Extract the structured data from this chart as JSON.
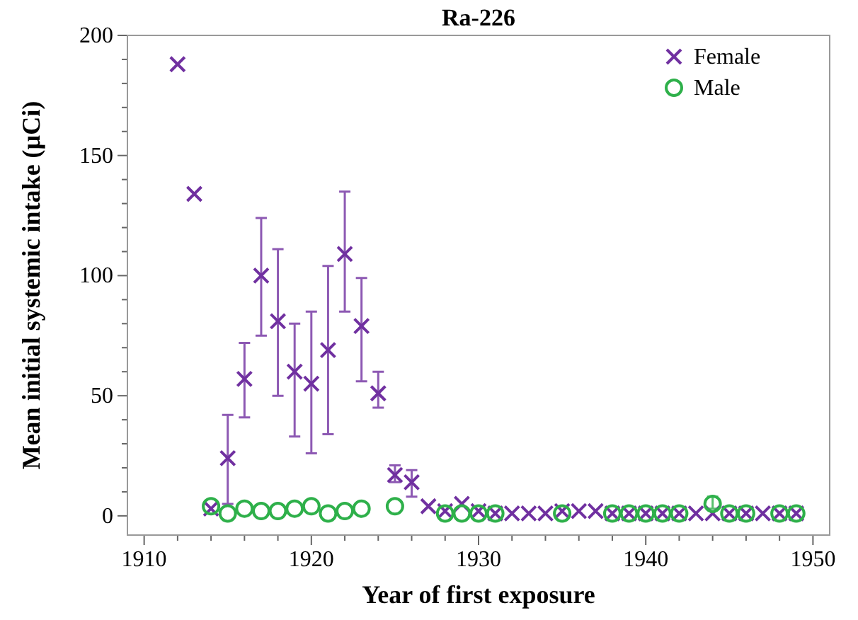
{
  "chart_data": {
    "type": "scatter",
    "title": "Ra-226",
    "xlabel": "Year of first exposure",
    "ylabel": "Mean initial systemic intake (µCi)",
    "xlim": [
      1909,
      1951
    ],
    "ylim": [
      -8,
      200
    ],
    "xticks": [
      1910,
      {
        "value": 1912,
        "label": null
      },
      {
        "value": 1914,
        "label": null
      },
      {
        "value": 1916,
        "label": null
      },
      {
        "value": 1918,
        "label": null
      },
      1920,
      {
        "value": 1922,
        "label": null
      },
      {
        "value": 1924,
        "label": null
      },
      {
        "value": 1926,
        "label": null
      },
      {
        "value": 1928,
        "label": null
      },
      1930,
      {
        "value": 1932,
        "label": null
      },
      {
        "value": 1934,
        "label": null
      },
      {
        "value": 1936,
        "label": null
      },
      {
        "value": 1938,
        "label": null
      },
      1940,
      {
        "value": 1942,
        "label": null
      },
      {
        "value": 1944,
        "label": null
      },
      {
        "value": 1946,
        "label": null
      },
      {
        "value": 1948,
        "label": null
      },
      1950
    ],
    "yticks": [
      0,
      {
        "value": 10,
        "label": null
      },
      {
        "value": 20,
        "label": null
      },
      {
        "value": 30,
        "label": null
      },
      {
        "value": 40,
        "label": null
      },
      50,
      {
        "value": 60,
        "label": null
      },
      {
        "value": 70,
        "label": null
      },
      {
        "value": 80,
        "label": null
      },
      {
        "value": 90,
        "label": null
      },
      100,
      {
        "value": 110,
        "label": null
      },
      {
        "value": 120,
        "label": null
      },
      {
        "value": 130,
        "label": null
      },
      {
        "value": 140,
        "label": null
      },
      150,
      {
        "value": 160,
        "label": null
      },
      {
        "value": 170,
        "label": null
      },
      {
        "value": 180,
        "label": null
      },
      {
        "value": 190,
        "label": null
      },
      200
    ],
    "legend": "top right",
    "grid": false,
    "series": [
      {
        "name": "Female",
        "color": "#7030a0",
        "marker": "cross",
        "x": [
          1912,
          1913,
          1914,
          1915,
          1916,
          1917,
          1918,
          1919,
          1920,
          1921,
          1922,
          1923,
          1924,
          1925,
          1926,
          1927,
          1928,
          1929,
          1930,
          1931,
          1932,
          1933,
          1934,
          1935,
          1936,
          1937,
          1938,
          1939,
          1940,
          1941,
          1942,
          1943,
          1944,
          1945,
          1946,
          1947,
          1948,
          1949
        ],
        "values": [
          188,
          134,
          3,
          24,
          57,
          100,
          81,
          60,
          55,
          69,
          109,
          79,
          51,
          17,
          14,
          4,
          2,
          5,
          2,
          1,
          1,
          1,
          1,
          2,
          2,
          2,
          1,
          1,
          1,
          1,
          1,
          1,
          1,
          1,
          1,
          1,
          1,
          1
        ],
        "errors": [
          null,
          null,
          null,
          [
            5,
            42
          ],
          [
            41,
            72
          ],
          [
            75,
            124
          ],
          [
            50,
            111
          ],
          [
            33,
            80
          ],
          [
            26,
            85
          ],
          [
            34,
            104
          ],
          [
            85,
            135
          ],
          [
            56,
            99
          ],
          [
            45,
            60
          ],
          [
            14,
            21
          ],
          [
            8,
            19
          ],
          null,
          null,
          null,
          null,
          null,
          null,
          null,
          null,
          null,
          null,
          null,
          null,
          null,
          null,
          null,
          null,
          null,
          null,
          null,
          null,
          null,
          null,
          null
        ]
      },
      {
        "name": "Male",
        "color": "#2eb04a",
        "marker": "circle",
        "x": [
          1914,
          1915,
          1916,
          1917,
          1918,
          1919,
          1920,
          1921,
          1922,
          1923,
          1925,
          1928,
          1929,
          1930,
          1931,
          1935,
          1938,
          1939,
          1940,
          1941,
          1942,
          1944,
          1945,
          1946,
          1948,
          1949
        ],
        "values": [
          4,
          1,
          3,
          2,
          2,
          3,
          4,
          1,
          2,
          3,
          4,
          1,
          1,
          1,
          1,
          1,
          1,
          1,
          1,
          1,
          1,
          5,
          1,
          1,
          1,
          1
        ],
        "errors": [
          null,
          null,
          null,
          null,
          null,
          null,
          null,
          null,
          null,
          null,
          null,
          null,
          null,
          null,
          null,
          null,
          null,
          null,
          null,
          null,
          null,
          [
            3,
            8
          ],
          null,
          null,
          null,
          null
        ]
      }
    ]
  }
}
